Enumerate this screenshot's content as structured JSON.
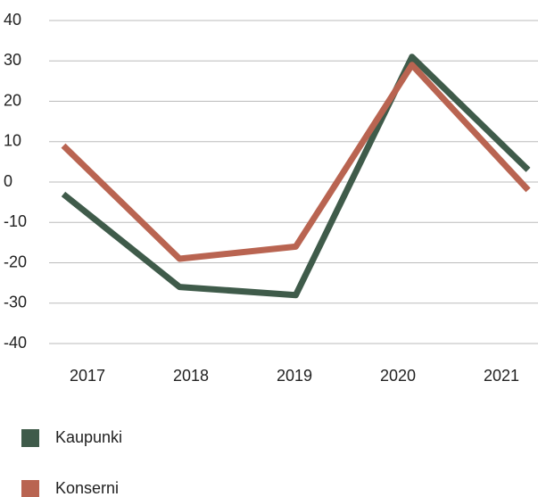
{
  "chart_data": {
    "type": "line",
    "categories": [
      "2017",
      "2018",
      "2019",
      "2020",
      "2021"
    ],
    "series": [
      {
        "name": "Kaupunki",
        "color": "#3f5b4a",
        "values": [
          -3,
          -26,
          -28,
          31,
          3
        ]
      },
      {
        "name": "Konserni",
        "color": "#b96451",
        "values": [
          9,
          -19,
          -16,
          29,
          -2
        ]
      }
    ],
    "ylim": [
      -40,
      40
    ],
    "yticks": [
      -40,
      -30,
      -20,
      -10,
      0,
      10,
      20,
      30,
      40
    ],
    "grid": true
  }
}
